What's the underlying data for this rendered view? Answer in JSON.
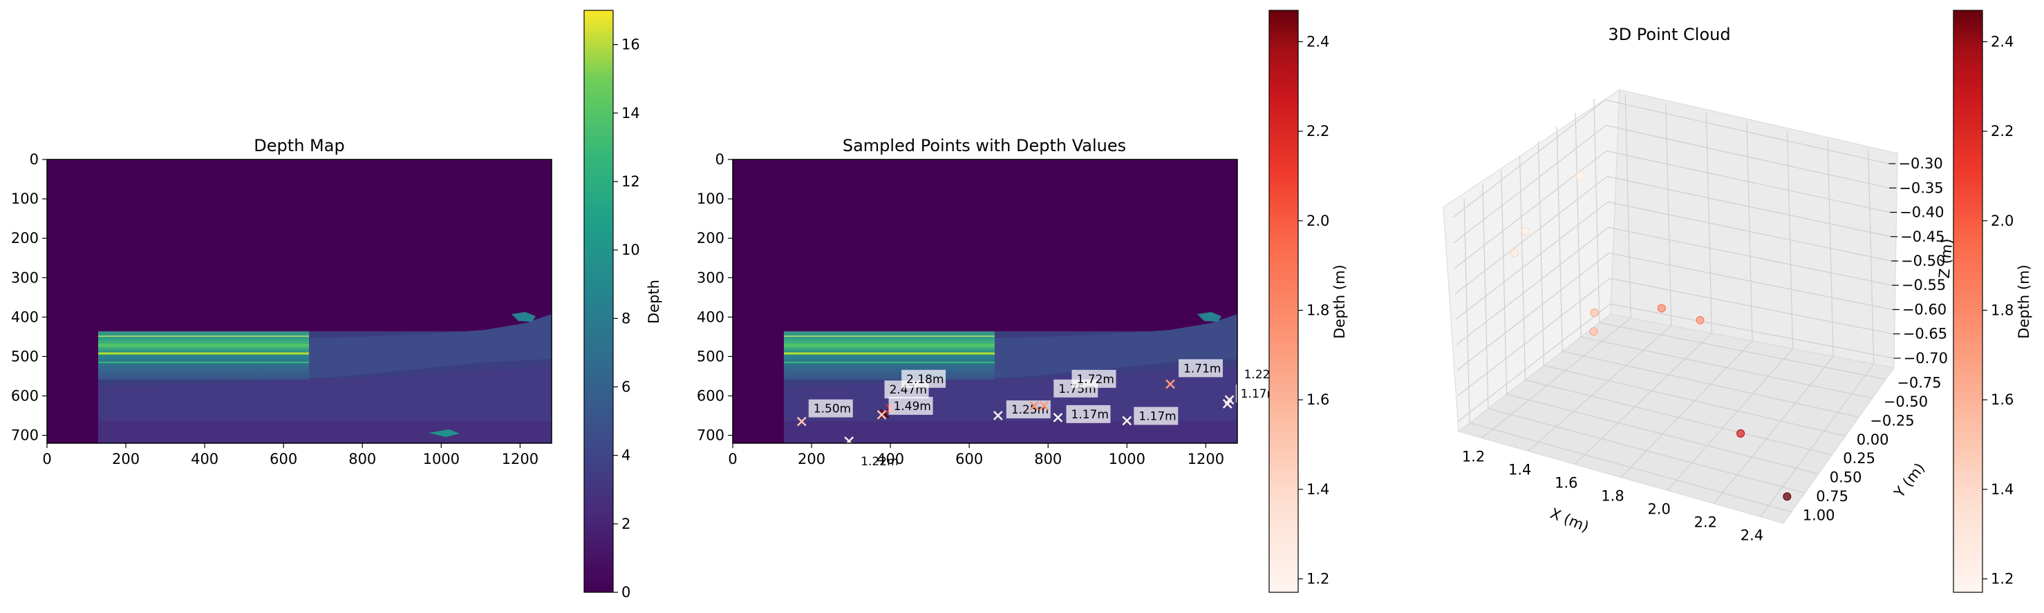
{
  "panels": {
    "depth_map": {
      "title": "Depth Map",
      "colorbar_label": "Depth"
    },
    "sampled": {
      "title": "Sampled Points with Depth Values",
      "colorbar_label": "Depth (m)"
    },
    "cloud": {
      "title": "3D Point Cloud",
      "colorbar_label": "Depth (m)",
      "xlabel": "X (m)",
      "ylabel": "Y (m)",
      "zlabel": "Z (m)"
    }
  },
  "colors": {
    "viridis_dark": "#440154",
    "viridis_blue": "#3b528b",
    "viridis_teal": "#21918c",
    "viridis_green": "#5ec962",
    "viridis_yellow": "#fde725",
    "reds_light": "#fff5f0",
    "reds_mid": "#fb6a4a",
    "reds_dark": "#67000d"
  },
  "chart_data": [
    {
      "type": "heatmap",
      "title": "Depth Map",
      "colormap": "viridis",
      "colorbar_label": "Depth",
      "colorbar_range": [
        0,
        17
      ],
      "colorbar_ticks": [
        0,
        2,
        4,
        6,
        8,
        10,
        12,
        14,
        16
      ],
      "x_ticks": [
        0,
        200,
        400,
        600,
        800,
        1000,
        1200
      ],
      "y_ticks": [
        0,
        100,
        200,
        300,
        400,
        500,
        600,
        700
      ],
      "xlim": [
        0,
        1280
      ],
      "ylim": [
        720,
        0
      ]
    },
    {
      "type": "scatter",
      "title": "Sampled Points with Depth Values",
      "colormap": "Reds",
      "colorbar_label": "Depth (m)",
      "colorbar_range": [
        1.17,
        2.47
      ],
      "colorbar_ticks": [
        1.2,
        1.4,
        1.6,
        1.8,
        2.0,
        2.2,
        2.4
      ],
      "x_ticks": [
        0,
        200,
        400,
        600,
        800,
        1000,
        1200
      ],
      "y_ticks": [
        0,
        100,
        200,
        300,
        400,
        500,
        600,
        700
      ],
      "xlim": [
        0,
        1280
      ],
      "ylim": [
        720,
        0
      ],
      "points": [
        {
          "x": 175,
          "y": 665,
          "depth": 1.5,
          "label": "1.50m"
        },
        {
          "x": 385,
          "y": 645,
          "depth": 2.47,
          "label": "2.47m"
        },
        {
          "x": 400,
          "y": 632,
          "depth": 2.18,
          "label": "2.18m"
        },
        {
          "x": 378,
          "y": 648,
          "depth": 1.49,
          "label": "1.49m"
        },
        {
          "x": 295,
          "y": 715,
          "depth": 1.22,
          "label": "1.22m"
        },
        {
          "x": 673,
          "y": 650,
          "depth": 1.25,
          "label": "1.25m"
        },
        {
          "x": 765,
          "y": 625,
          "depth": 1.75,
          "label": "1.75m"
        },
        {
          "x": 790,
          "y": 625,
          "depth": 1.72,
          "label": "1.72m"
        },
        {
          "x": 825,
          "y": 655,
          "depth": 1.17,
          "label": "1.17m"
        },
        {
          "x": 1000,
          "y": 663,
          "depth": 1.17,
          "label": "1.17m"
        },
        {
          "x": 1110,
          "y": 570,
          "depth": 1.71,
          "label": "1.71m"
        },
        {
          "x": 1255,
          "y": 620,
          "depth": 1.17,
          "label": "1.17m"
        },
        {
          "x": 1260,
          "y": 610,
          "depth": 1.22,
          "label": "1.22"
        }
      ]
    },
    {
      "type": "scatter",
      "title": "3D Point Cloud",
      "colormap": "Reds",
      "colorbar_label": "Depth (m)",
      "colorbar_range": [
        1.17,
        2.47
      ],
      "colorbar_ticks": [
        1.2,
        1.4,
        1.6,
        1.8,
        2.0,
        2.2,
        2.4
      ],
      "xlabel": "X (m)",
      "ylabel": "Y (m)",
      "zlabel": "Z (m)",
      "x_ticks": [
        1.2,
        1.4,
        1.6,
        1.8,
        2.0,
        2.2,
        2.4
      ],
      "y_ticks": [
        -0.75,
        -0.5,
        -0.25,
        0.0,
        0.25,
        0.5,
        0.75,
        1.0
      ],
      "z_ticks": [
        -0.7,
        -0.65,
        -0.6,
        -0.55,
        -0.5,
        -0.45,
        -0.4,
        -0.35,
        -0.3
      ],
      "x_tick_labels": [
        "1.2",
        "1.4",
        "1.6",
        "1.8",
        "2.0",
        "2.2",
        "2.4"
      ],
      "y_tick_labels": [
        "−0.75",
        "−0.50",
        "−0.25",
        "0.00",
        "0.25",
        "0.50",
        "0.75",
        "1.00"
      ],
      "z_tick_labels": [
        "−0.70",
        "−0.65",
        "−0.60",
        "−0.55",
        "−0.50",
        "−0.45",
        "−0.40",
        "−0.35",
        "−0.30"
      ],
      "points": [
        {
          "x": 1.17,
          "y": -0.35,
          "z": -0.38,
          "depth": 1.17
        },
        {
          "x": 1.22,
          "y": 0.55,
          "z": -0.38,
          "depth": 1.22
        },
        {
          "x": 1.25,
          "y": 0.8,
          "z": -0.39,
          "depth": 1.25
        },
        {
          "x": 1.49,
          "y": 0.45,
          "z": -0.52,
          "depth": 1.49
        },
        {
          "x": 1.5,
          "y": 0.5,
          "z": -0.55,
          "depth": 1.5
        },
        {
          "x": 1.71,
          "y": -0.4,
          "z": -0.62,
          "depth": 1.71
        },
        {
          "x": 1.75,
          "y": 0.3,
          "z": -0.5,
          "depth": 1.75
        },
        {
          "x": 2.18,
          "y": 0.6,
          "z": -0.66,
          "depth": 2.18
        },
        {
          "x": 2.47,
          "y": 0.95,
          "z": -0.7,
          "depth": 2.47
        }
      ]
    }
  ]
}
